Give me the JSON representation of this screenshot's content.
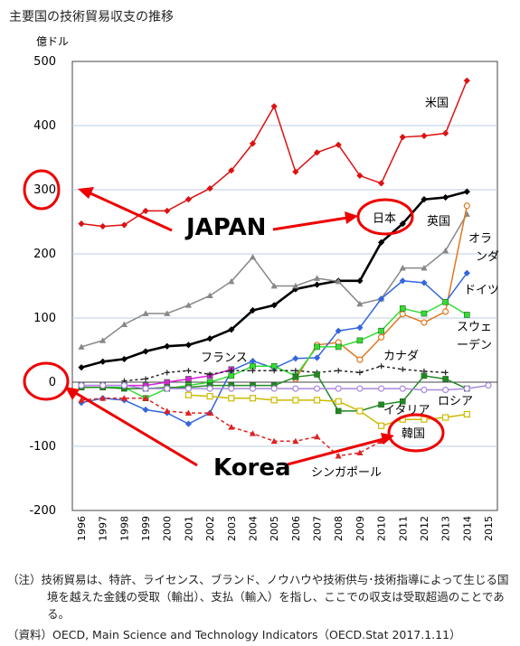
{
  "title": "主要国の技術貿易収支の推移",
  "note": "（注）技術貿易は、特許、ライセンス、ブランド、ノウハウや技術供与･技術指導によって生じる国境を越えた金銭の受取（輸出）、支払（輸入）を指し、ここでの収支は受取超過のことである。",
  "source": "（資料）OECD, Main Science and Technology Indicators（OECD.Stat 2017.1.11）",
  "annotations": {
    "japan": "JAPAN",
    "korea": "Korea"
  },
  "chart_data": {
    "type": "line",
    "ylabel": "億ドル",
    "ylim": [
      -200,
      500
    ],
    "yticks": [
      500,
      400,
      300,
      200,
      100,
      0,
      -100,
      -200
    ],
    "categories": [
      "1996",
      "1997",
      "1998",
      "1999",
      "2000",
      "2001",
      "2002",
      "2003",
      "2004",
      "2005",
      "2006",
      "2007",
      "2008",
      "2009",
      "2010",
      "2011",
      "2012",
      "2013",
      "2014",
      "2015"
    ],
    "grid": true,
    "series": [
      {
        "name": "米国",
        "color": "#dd1111",
        "marker": "diamond",
        "dash": "",
        "values": [
          247,
          243,
          245,
          267,
          267,
          285,
          302,
          330,
          372,
          430,
          328,
          358,
          370,
          322,
          310,
          382,
          384,
          388,
          470,
          null
        ]
      },
      {
        "name": "日本",
        "color": "#000000",
        "marker": "diamond",
        "dash": "",
        "width": 2.6,
        "values": [
          23,
          32,
          36,
          48,
          56,
          58,
          68,
          82,
          112,
          120,
          145,
          152,
          158,
          158,
          218,
          247,
          285,
          288,
          297,
          null
        ]
      },
      {
        "name": "英国",
        "color": "#888888",
        "marker": "triangle",
        "dash": "",
        "values": [
          55,
          65,
          90,
          107,
          107,
          120,
          135,
          157,
          195,
          150,
          150,
          162,
          157,
          122,
          130,
          178,
          178,
          205,
          262,
          null
        ]
      },
      {
        "name": "オランダ",
        "color": "#e07820",
        "marker": "circle-open",
        "dash": "",
        "values": [
          null,
          null,
          null,
          null,
          null,
          null,
          null,
          null,
          null,
          null,
          5,
          58,
          62,
          35,
          70,
          106,
          93,
          110,
          275,
          null
        ]
      },
      {
        "name": "ドイツ",
        "color": "#3366dd",
        "marker": "diamond",
        "dash": "",
        "values": [
          -32,
          -25,
          -28,
          -43,
          -48,
          -65,
          -48,
          18,
          33,
          22,
          37,
          38,
          80,
          85,
          130,
          158,
          155,
          125,
          170,
          null
        ]
      },
      {
        "name": "スウェーデン",
        "color": "#33dd33",
        "marker": "square",
        "dash": "",
        "values": [
          -8,
          -8,
          -8,
          -25,
          -10,
          -5,
          0,
          10,
          25,
          25,
          10,
          55,
          55,
          65,
          80,
          115,
          107,
          125,
          105,
          null
        ]
      },
      {
        "name": "フランス",
        "color": "#dd22dd",
        "marker": "square",
        "dash": "",
        "values": [
          -5,
          -5,
          -5,
          -5,
          0,
          5,
          10,
          20,
          null,
          null,
          null,
          null,
          null,
          null,
          null,
          null,
          null,
          null,
          null,
          null
        ]
      },
      {
        "name": "カナダ",
        "color": "#222222",
        "marker": "plus",
        "dash": "3,3",
        "values": [
          null,
          null,
          2,
          5,
          15,
          18,
          12,
          18,
          18,
          18,
          18,
          15,
          18,
          15,
          25,
          20,
          17,
          15,
          null,
          null
        ]
      },
      {
        "name": "イタリア",
        "color": "#228822",
        "marker": "square",
        "dash": "",
        "values": [
          -8,
          -8,
          -10,
          -10,
          -8,
          -8,
          -5,
          -5,
          -5,
          -5,
          8,
          12,
          -45,
          -45,
          -35,
          -30,
          10,
          5,
          -10,
          null
        ]
      },
      {
        "name": "ロシア",
        "color": "#aa88dd",
        "marker": "circle-open",
        "dash": "",
        "values": [
          -5,
          -5,
          -5,
          -10,
          -10,
          -10,
          -10,
          -10,
          -10,
          -10,
          -10,
          -10,
          -10,
          -10,
          -10,
          -10,
          -12,
          -12,
          -10,
          -5
        ]
      },
      {
        "name": "韓国",
        "color": "#ccbb00",
        "marker": "square-open",
        "dash": "",
        "values": [
          null,
          null,
          null,
          null,
          null,
          -20,
          -22,
          -25,
          -25,
          -28,
          -28,
          -28,
          -30,
          -45,
          -68,
          -58,
          -58,
          -55,
          -50,
          null
        ]
      },
      {
        "name": "シンガポール",
        "color": "#dd2222",
        "marker": "triangle",
        "dash": "4,3",
        "values": [
          -28,
          -25,
          -25,
          -25,
          -45,
          -48,
          -48,
          -70,
          -80,
          -92,
          -92,
          -85,
          -115,
          -110,
          -92,
          null,
          null,
          null,
          null,
          null
        ]
      }
    ]
  }
}
